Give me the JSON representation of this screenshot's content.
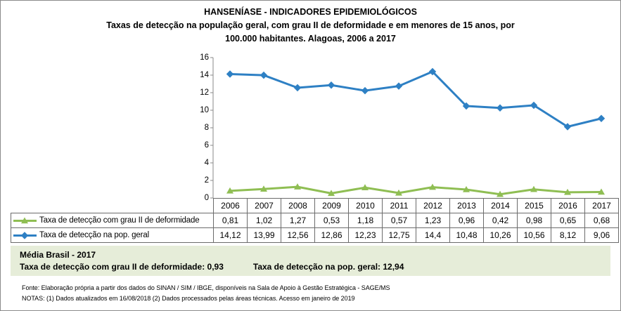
{
  "title": "HANSENÍASE - INDICADORES EPIDEMIOLÓGICOS",
  "subtitle": {
    "line1": "Taxas de detecção na população geral, com grau II de deformidade e em menores de 15 anos, por",
    "line2": "100.000 habitantes. Alagoas, 2006 a 2017"
  },
  "chart_data": {
    "type": "line",
    "title": "Taxas de detecção na população geral, com grau II de deformidade e em menores de 15 anos, por 100.000 habitantes. Alagoas, 2006 a 2017",
    "categories": [
      "2006",
      "2007",
      "2008",
      "2009",
      "2010",
      "2011",
      "2012",
      "2013",
      "2014",
      "2015",
      "2016",
      "2017"
    ],
    "series": [
      {
        "name": "Taxa de detecção com grau II de deformidade",
        "marker": "triangle",
        "color": "#8FBE53",
        "values": [
          0.81,
          1.02,
          1.27,
          0.53,
          1.18,
          0.57,
          1.23,
          0.96,
          0.42,
          0.98,
          0.65,
          0.68
        ],
        "display_values": [
          "0,81",
          "1,02",
          "1,27",
          "0,53",
          "1,18",
          "0,57",
          "1,23",
          "0,96",
          "0,42",
          "0,98",
          "0,65",
          "0,68"
        ]
      },
      {
        "name": "Taxa de detecção na pop. geral",
        "marker": "diamond",
        "color": "#2E80C4",
        "values": [
          14.12,
          13.99,
          12.56,
          12.86,
          12.23,
          12.75,
          14.4,
          10.48,
          10.26,
          10.56,
          8.12,
          9.06
        ],
        "display_values": [
          "14,12",
          "13,99",
          "12,56",
          "12,86",
          "12,23",
          "12,75",
          "14,4",
          "10,48",
          "10,26",
          "10,56",
          "8,12",
          "9,06"
        ]
      }
    ],
    "ylim": [
      0,
      16
    ],
    "y_ticks": [
      0,
      2,
      4,
      6,
      8,
      10,
      12,
      14,
      16
    ],
    "grid": false,
    "legend_position": "data-table-left"
  },
  "media_brasil": {
    "heading": "Média Brasil - 2017",
    "grau2_text": "Taxa de detecção com grau II de deformidade: 0,93",
    "geral_text": "Taxa de detecção na pop. geral: 12,94"
  },
  "footer": {
    "fonte": "Fonte:  Elaboração própria a partir dos dados do  SINAN / SIM / IBGE, disponíveis na Sala de Apoio à Gestão Estratégica -  SAGE/MS",
    "notas": "NOTAS: (1) Dados atualizados em 16/08/2018 (2) Dados processados pelas áreas técnicas. Acesso em janeiro de 2019"
  },
  "colors": {
    "grau2_series": "#8FBE53",
    "geral_series": "#2E80C4",
    "media_box_bg": "#E6EDD9",
    "table_border": "#6B6B6B",
    "axis": "#8A8A8A",
    "frame_border": "#8A8A8A",
    "text": "#000000"
  }
}
